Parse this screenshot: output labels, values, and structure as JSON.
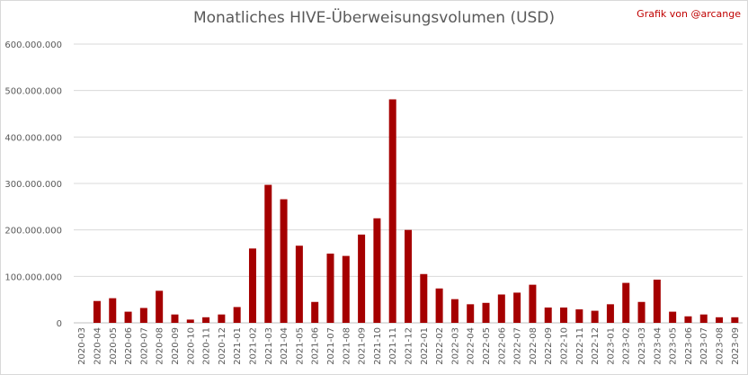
{
  "chart_data": {
    "type": "bar",
    "title": "Monatliches HIVE-Überweisungsvolumen (USD)",
    "credit": "Grafik von @arcange",
    "xlabel": "",
    "ylabel": "",
    "ylim": [
      0,
      600000000
    ],
    "yticks": [
      {
        "value": 0,
        "label": "0"
      },
      {
        "value": 100000000,
        "label": "100.000.000"
      },
      {
        "value": 200000000,
        "label": "200.000.000"
      },
      {
        "value": 300000000,
        "label": "300.000.000"
      },
      {
        "value": 400000000,
        "label": "400.000.000"
      },
      {
        "value": 500000000,
        "label": "500.000.000"
      },
      {
        "value": 600000000,
        "label": "600.000.000"
      }
    ],
    "grid": true,
    "legend": "none",
    "bar_color": "#a50000",
    "categories": [
      "2020-03",
      "2020-04",
      "2020-05",
      "2020-06",
      "2020-07",
      "2020-08",
      "2020-09",
      "2020-10",
      "2020-11",
      "2020-12",
      "2021-01",
      "2021-02",
      "2021-03",
      "2021-04",
      "2021-05",
      "2021-06",
      "2021-07",
      "2021-08",
      "2021-09",
      "2021-10",
      "2021-11",
      "2021-12",
      "2022-01",
      "2022-02",
      "2022-03",
      "2022-04",
      "2022-05",
      "2022-06",
      "2022-07",
      "2022-08",
      "2022-09",
      "2022-10",
      "2022-11",
      "2022-12",
      "2023-01",
      "2023-02",
      "2023-03",
      "2023-04",
      "2023-05",
      "2023-06",
      "2023-07",
      "2023-08",
      "2023-09"
    ],
    "values": [
      0,
      47000000,
      53000000,
      24000000,
      32000000,
      69000000,
      18000000,
      7000000,
      12000000,
      18000000,
      34000000,
      160000000,
      297000000,
      266000000,
      166000000,
      45000000,
      149000000,
      144000000,
      190000000,
      225000000,
      481000000,
      200000000,
      105000000,
      74000000,
      51000000,
      40000000,
      43000000,
      61000000,
      65000000,
      82000000,
      33000000,
      33000000,
      29000000,
      26000000,
      40000000,
      86000000,
      45000000,
      93000000,
      24000000,
      14000000,
      18000000,
      12000000,
      12000000
    ]
  }
}
